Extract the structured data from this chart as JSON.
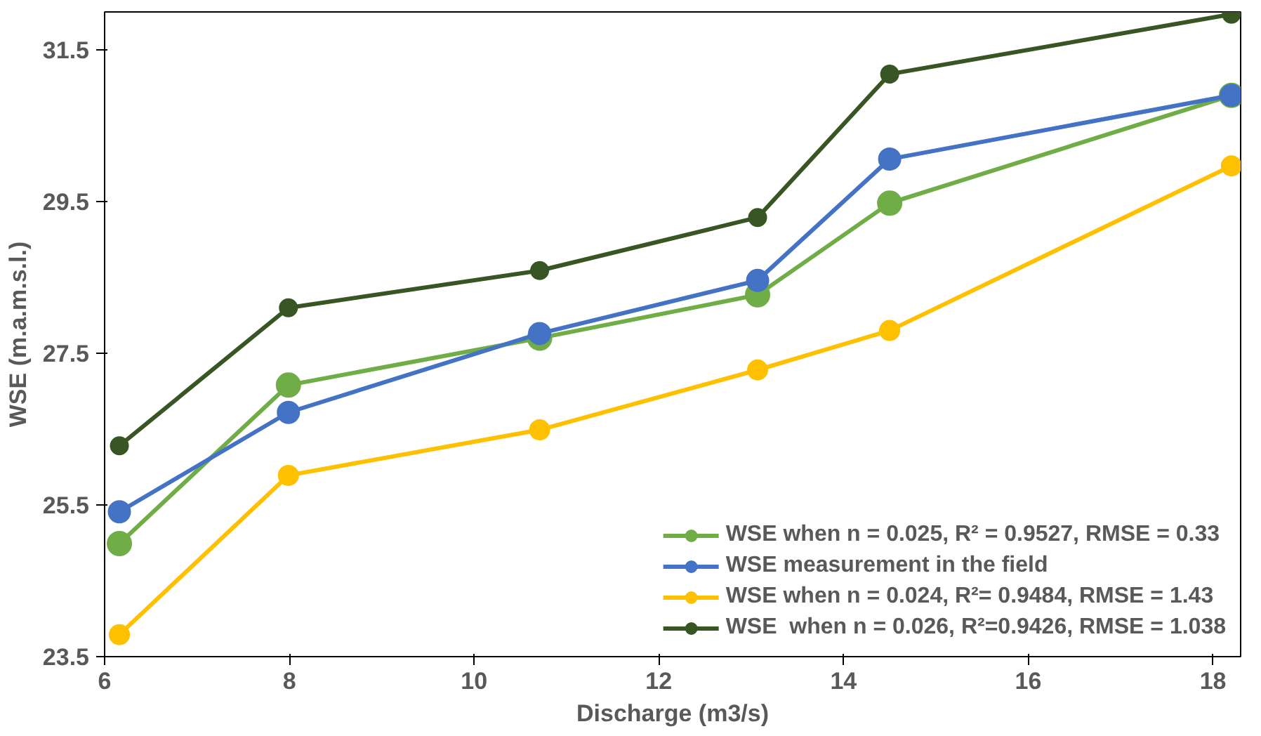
{
  "chart_data": {
    "type": "line",
    "xlabel": "Discharge (m3/s)",
    "ylabel": "WSE (m.a.m.s.l.)",
    "x": [
      6.16,
      7.99,
      10.71,
      13.07,
      14.5,
      18.2
    ],
    "series": [
      {
        "name": "WSE when n = 0.025, R² = 0.9527, RMSE = 0.33",
        "color": "#70ad47",
        "values": [
          24.99,
          27.08,
          27.7,
          28.27,
          29.48,
          30.9
        ]
      },
      {
        "name": "WSE measurement in the field",
        "color": "#4472c4",
        "values": [
          25.41,
          26.72,
          27.76,
          28.46,
          30.06,
          30.9
        ]
      },
      {
        "name": "WSE when n = 0.024, R²= 0.9484, RMSE = 1.43",
        "color": "#ffc000",
        "values": [
          23.79,
          25.89,
          26.49,
          27.28,
          27.8,
          29.97
        ]
      },
      {
        "name": "WSE  when n = 0.026, R²=0.9426, RMSE = 1.038",
        "color": "#375623",
        "values": [
          26.28,
          28.1,
          28.59,
          29.29,
          31.18,
          31.97
        ]
      }
    ],
    "xlim": [
      6,
      18.3
    ],
    "xticks": [
      6,
      8,
      10,
      12,
      14,
      16,
      18
    ],
    "ylim": [
      23.5,
      32.0
    ],
    "yticks": [
      23.5,
      25.5,
      27.5,
      29.5,
      31.5
    ],
    "grid": false,
    "legend": "bottom right",
    "marker": "circle",
    "line_style": "solid"
  }
}
